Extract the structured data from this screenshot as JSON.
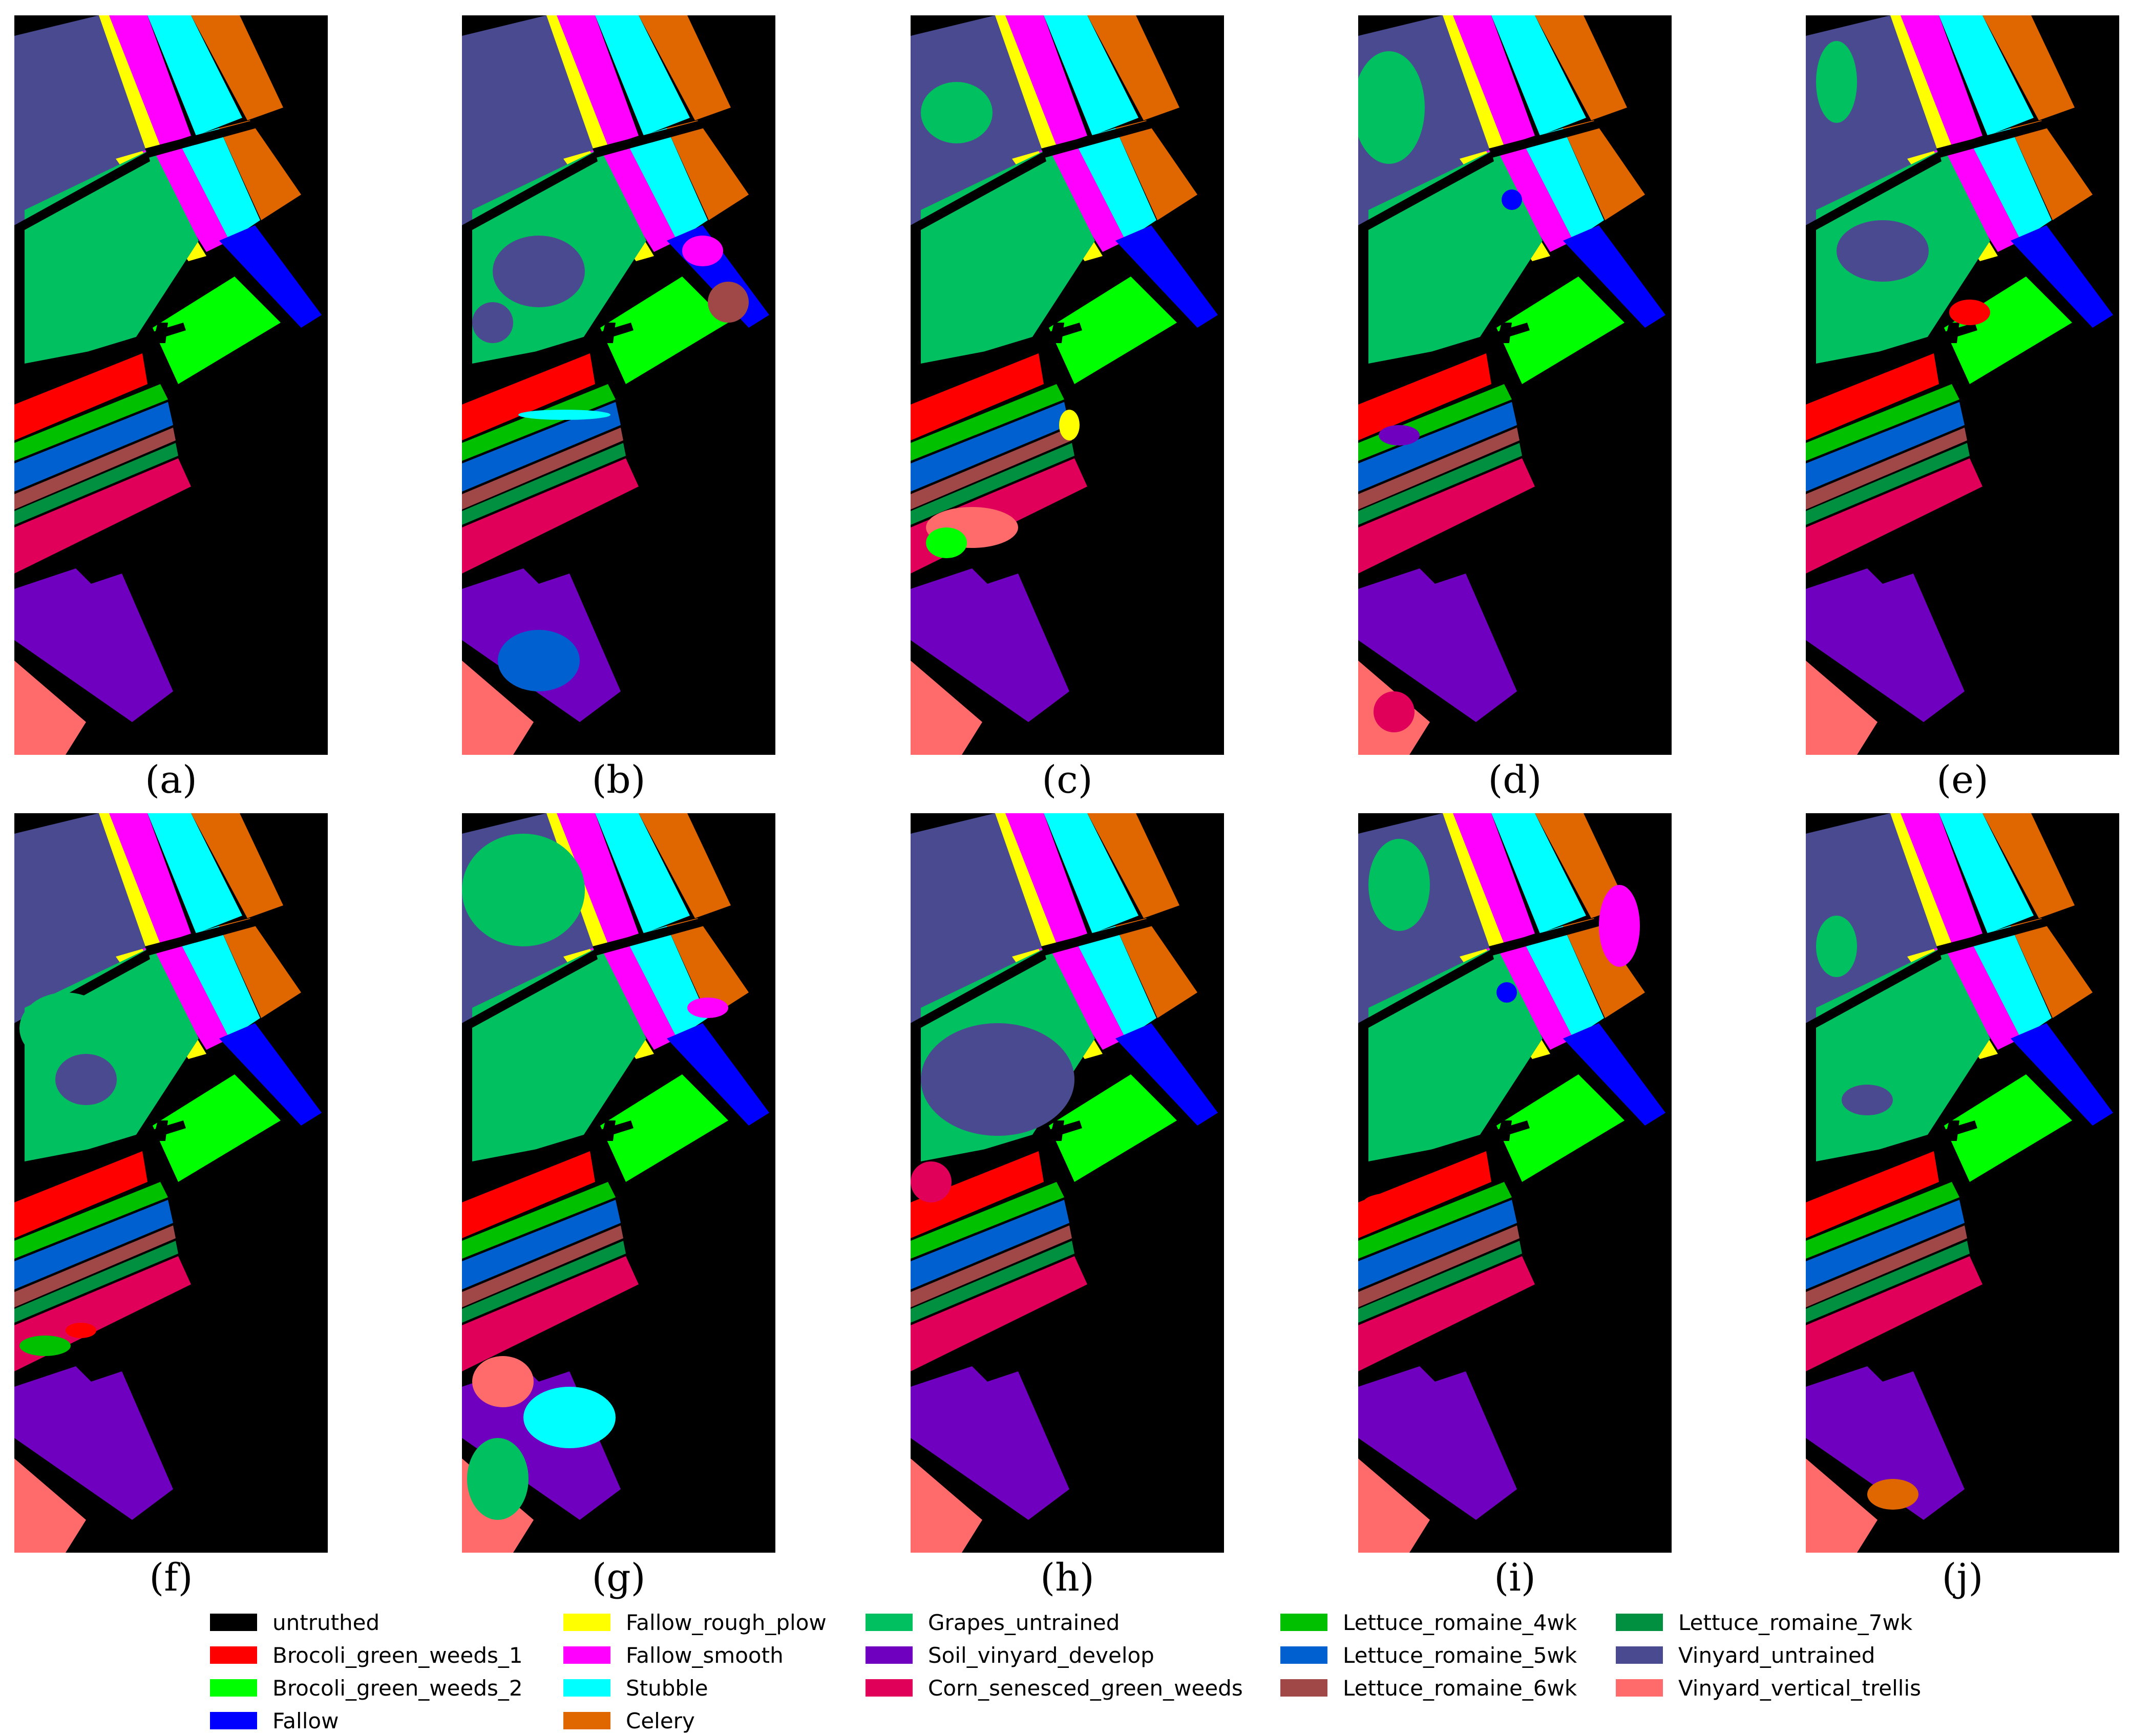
{
  "figure": {
    "panels": [
      {
        "label": "(a)"
      },
      {
        "label": "(b)"
      },
      {
        "label": "(c)"
      },
      {
        "label": "(d)"
      },
      {
        "label": "(e)"
      },
      {
        "label": "(f)"
      },
      {
        "label": "(g)"
      },
      {
        "label": "(h)"
      },
      {
        "label": "(i)"
      },
      {
        "label": "(j)"
      }
    ]
  },
  "legend": {
    "items": [
      {
        "label": "untruthed",
        "color": "#000000"
      },
      {
        "label": "Brocoli_green_weeds_1",
        "color": "#ff0000"
      },
      {
        "label": "Brocoli_green_weeds_2",
        "color": "#00ff00"
      },
      {
        "label": "Fallow",
        "color": "#0000ff"
      },
      {
        "label": "Fallow_rough_plow",
        "color": "#ffff00"
      },
      {
        "label": "Fallow_smooth",
        "color": "#ff00ff"
      },
      {
        "label": "Stubble",
        "color": "#00ffff"
      },
      {
        "label": "Celery",
        "color": "#e06600"
      },
      {
        "label": "Grapes_untrained",
        "color": "#00c060"
      },
      {
        "label": "Soil_vinyard_develop",
        "color": "#7000c0"
      },
      {
        "label": "Corn_senesced_green_weeds",
        "color": "#e0005a"
      },
      {
        "label": "Lettuce_romaine_4wk",
        "color": "#00c000"
      },
      {
        "label": "Lettuce_romaine_5wk",
        "color": "#0060d0"
      },
      {
        "label": "Lettuce_romaine_6wk",
        "color": "#a04848"
      },
      {
        "label": "Lettuce_romaine_7wk",
        "color": "#009040"
      },
      {
        "label": "Vinyard_untrained",
        "color": "#4a4a90"
      },
      {
        "label": "Vinyard_vertical_trellis",
        "color": "#ff6a6a"
      }
    ]
  }
}
